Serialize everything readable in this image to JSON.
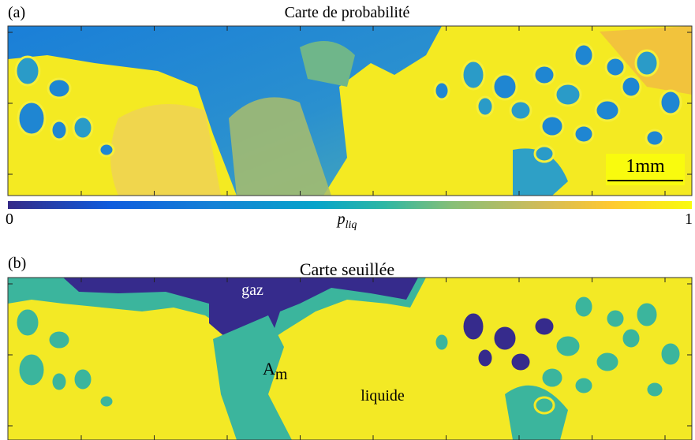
{
  "panels": [
    {
      "label": "(a)",
      "title": "Carte de probabilité",
      "scale_bar": "1mm",
      "colorbar": {
        "min_label": "0",
        "max_label": "1",
        "label": "p",
        "label_subscript": "liq"
      }
    },
    {
      "label": "(b)",
      "title": "Carte seuillée",
      "annotations": [
        {
          "text": "gaz"
        },
        {
          "text": "A",
          "subscript": "m"
        },
        {
          "text": "liquide"
        }
      ]
    }
  ]
}
